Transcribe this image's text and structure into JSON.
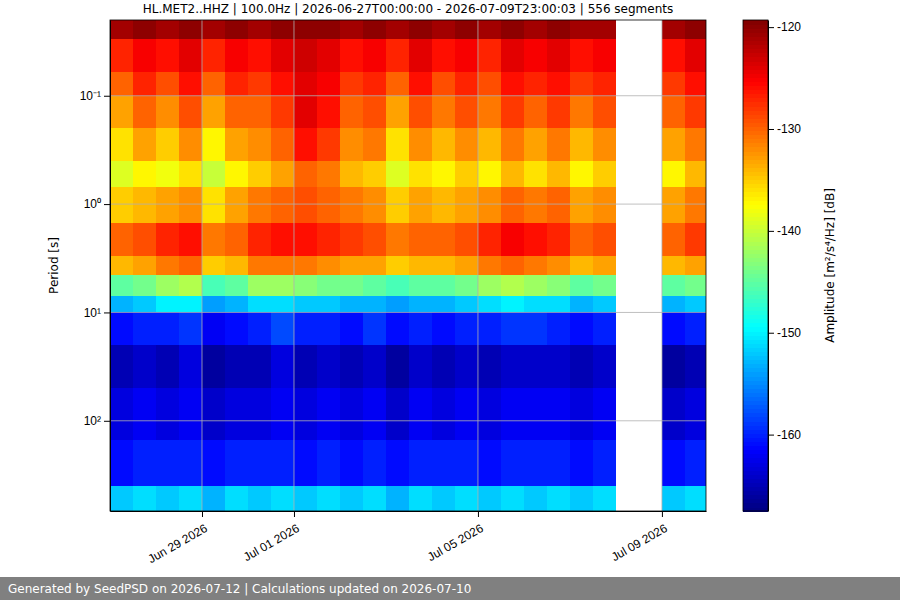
{
  "chart_data": {
    "type": "heatmap",
    "title": "HL.MET2..HHZ | 100.0Hz | 2026-06-27T00:00:00 - 2026-07-09T23:00:03 | 556 segments",
    "y_label": "Period [s]",
    "footer": "Generated by SeedPSD on 2026-07-12 | Calculations updated on 2026-07-10",
    "log": "y",
    "grid": true,
    "color": "jet",
    "xlim": [
      "2026-06-27T00:00:00",
      "2026-07-09T23:00:03"
    ],
    "ylim": [
      0.02,
      680
    ],
    "xticks": [
      {
        "value": "2026-06-29T00:00:00",
        "label": "Jun 29 2026"
      },
      {
        "value": "2026-07-01T00:00:00",
        "label": "Jul 01 2026"
      },
      {
        "value": "2026-07-05T00:00:00",
        "label": "Jul 05 2026"
      },
      {
        "value": "2026-07-09T00:00:00",
        "label": "Jul 09 2026"
      }
    ],
    "yticks": [
      {
        "value": 0.1,
        "label": "10⁻¹"
      },
      {
        "value": 1,
        "label": "10⁰"
      },
      {
        "value": 10,
        "label": "10¹"
      },
      {
        "value": 100,
        "label": "10²"
      }
    ],
    "x_bins": [
      "2026-06-27T00:00:00",
      "2026-06-27T12:00:00",
      "2026-06-28T00:00:00",
      "2026-06-28T12:00:00",
      "2026-06-29T00:00:00",
      "2026-06-29T12:00:00",
      "2026-06-30T00:00:00",
      "2026-06-30T12:00:00",
      "2026-07-01T00:00:00",
      "2026-07-01T12:00:00",
      "2026-07-02T00:00:00",
      "2026-07-02T12:00:00",
      "2026-07-03T00:00:00",
      "2026-07-03T12:00:00",
      "2026-07-04T00:00:00",
      "2026-07-04T12:00:00",
      "2026-07-05T00:00:00",
      "2026-07-05T12:00:00",
      "2026-07-06T00:00:00",
      "2026-07-06T12:00:00",
      "2026-07-07T00:00:00",
      "2026-07-07T12:00:00",
      "2026-07-08T00:00:00",
      "2026-07-08T12:00:00",
      "2026-07-09T00:00:00",
      "2026-07-09T12:00:00",
      "2026-07-09T23:00:03"
    ],
    "y_bins": [
      0.02,
      0.03,
      0.06,
      0.1,
      0.2,
      0.4,
      0.7,
      1.5,
      3,
      4.5,
      7,
      10,
      20,
      50,
      150,
      400,
      680
    ],
    "z": [
      [
        -121,
        -120,
        -121,
        -120,
        -121,
        -120,
        -121,
        -120,
        -120,
        -120,
        -121,
        -120,
        -121,
        -120,
        -121,
        -120,
        -121,
        -120,
        -121,
        -120,
        -121,
        -121,
        null,
        null,
        -121,
        -120
      ],
      [
        -127,
        -125,
        -126,
        -124,
        -127,
        -125,
        -126,
        -124,
        -123,
        -124,
        -126,
        -125,
        -127,
        -124,
        -126,
        -125,
        -127,
        -124,
        -125,
        -124,
        -126,
        -125,
        null,
        null,
        -126,
        -124
      ],
      [
        -130,
        -127,
        -129,
        -126,
        -130,
        -127,
        -128,
        -126,
        -124,
        -125,
        -128,
        -127,
        -130,
        -126,
        -129,
        -127,
        -129,
        -126,
        -127,
        -126,
        -128,
        -127,
        null,
        null,
        -128,
        -126
      ],
      [
        -133,
        -130,
        -132,
        -129,
        -133,
        -130,
        -130,
        -128,
        -124,
        -126,
        -130,
        -129,
        -133,
        -129,
        -131,
        -129,
        -131,
        -128,
        -130,
        -128,
        -131,
        -129,
        null,
        null,
        -130,
        -128
      ],
      [
        -136,
        -133,
        -135,
        -132,
        -137,
        -133,
        -132,
        -130,
        -126,
        -128,
        -132,
        -131,
        -136,
        -132,
        -134,
        -132,
        -134,
        -131,
        -133,
        -131,
        -134,
        -132,
        null,
        null,
        -133,
        -131
      ],
      [
        -139,
        -137,
        -138,
        -136,
        -140,
        -137,
        -135,
        -133,
        -130,
        -131,
        -134,
        -135,
        -139,
        -136,
        -137,
        -135,
        -137,
        -134,
        -136,
        -134,
        -137,
        -135,
        null,
        null,
        -137,
        -134
      ],
      [
        -135,
        -134,
        -133,
        -132,
        -136,
        -133,
        -131,
        -130,
        -129,
        -130,
        -131,
        -132,
        -135,
        -133,
        -134,
        -133,
        -132,
        -130,
        -131,
        -130,
        -133,
        -132,
        null,
        null,
        -133,
        -131
      ],
      [
        -130,
        -129,
        -127,
        -126,
        -131,
        -130,
        -127,
        -126,
        -126,
        -127,
        -128,
        -129,
        -131,
        -130,
        -130,
        -129,
        -127,
        -125,
        -126,
        -127,
        -130,
        -129,
        null,
        null,
        -130,
        -128
      ],
      [
        -134,
        -133,
        -131,
        -130,
        -135,
        -134,
        -131,
        -131,
        -131,
        -132,
        -133,
        -133,
        -135,
        -134,
        -134,
        -133,
        -131,
        -130,
        -131,
        -132,
        -134,
        -133,
        null,
        null,
        -134,
        -133
      ],
      [
        -145,
        -144,
        -142,
        -141,
        -146,
        -145,
        -142,
        -142,
        -143,
        -144,
        -144,
        -145,
        -146,
        -145,
        -145,
        -144,
        -142,
        -141,
        -142,
        -143,
        -145,
        -144,
        null,
        null,
        -145,
        -144
      ],
      [
        -153,
        -152,
        -150,
        -150,
        -154,
        -153,
        -151,
        -151,
        -152,
        -152,
        -153,
        -153,
        -154,
        -153,
        -153,
        -152,
        -151,
        -150,
        -151,
        -151,
        -153,
        -152,
        null,
        null,
        -153,
        -152
      ],
      [
        -161,
        -160,
        -160,
        -159,
        -162,
        -161,
        -160,
        -158,
        -160,
        -160,
        -161,
        -159,
        -161,
        -160,
        -161,
        -160,
        -160,
        -159,
        -159,
        -160,
        -161,
        -160,
        null,
        null,
        -161,
        -160
      ],
      [
        -165,
        -164,
        -165,
        -163,
        -166,
        -165,
        -165,
        -163,
        -165,
        -164,
        -165,
        -164,
        -166,
        -164,
        -165,
        -164,
        -165,
        -164,
        -164,
        -164,
        -165,
        -164,
        null,
        null,
        -166,
        -165
      ],
      [
        -163,
        -162,
        -163,
        -162,
        -164,
        -163,
        -163,
        -162,
        -163,
        -162,
        -163,
        -162,
        -164,
        -162,
        -163,
        -162,
        -163,
        -162,
        -162,
        -162,
        -163,
        -162,
        null,
        null,
        -164,
        -163
      ],
      [
        -161,
        -160,
        -160,
        -160,
        -161,
        -160,
        -160,
        -160,
        -161,
        -160,
        -161,
        -160,
        -161,
        -160,
        -160,
        -160,
        -161,
        -160,
        -160,
        -160,
        -161,
        -160,
        null,
        null,
        -161,
        -160
      ],
      [
        -152,
        -151,
        -152,
        -151,
        -153,
        -151,
        -152,
        -151,
        -152,
        -151,
        -152,
        -151,
        -153,
        -151,
        -152,
        -151,
        -152,
        -151,
        -152,
        -151,
        -152,
        -151,
        null,
        null,
        -152,
        -151
      ]
    ],
    "colorbar": {
      "label": "Amplitude [m²/s⁴/Hz] [dB]",
      "range": [
        -167.5,
        -119.3
      ],
      "ticks": [
        -120,
        -130,
        -140,
        -150,
        -160
      ]
    }
  }
}
